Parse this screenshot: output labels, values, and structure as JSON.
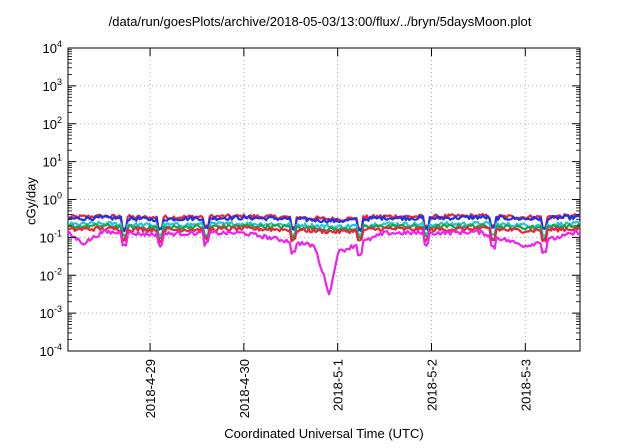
{
  "chart_data": {
    "type": "line",
    "title": "/data/run/goesPlots/archive/2018-05-03/13:00/flux/../bryn/5daysMoon.plot",
    "xlabel": "Coordinated Universal Time (UTC)",
    "ylabel": "cGy/day",
    "y_scale": "log",
    "ylim": [
      0.0001,
      10000
    ],
    "y_ticks": [
      {
        "value": 0.0001,
        "base": "10",
        "exp": "-4"
      },
      {
        "value": 0.001,
        "base": "10",
        "exp": "-3"
      },
      {
        "value": 0.01,
        "base": "10",
        "exp": "-2"
      },
      {
        "value": 0.1,
        "base": "10",
        "exp": "-1"
      },
      {
        "value": 1,
        "base": "10",
        "exp": "0"
      },
      {
        "value": 10,
        "base": "10",
        "exp": "1"
      },
      {
        "value": 100,
        "base": "10",
        "exp": "2"
      },
      {
        "value": 1000,
        "base": "10",
        "exp": "3"
      },
      {
        "value": 10000,
        "base": "10",
        "exp": "4"
      }
    ],
    "x_range": [
      "2018-04-28 03:00",
      "2018-05-03 14:00"
    ],
    "x_ticks": [
      "2018-4-29",
      "2018-4-30",
      "2018-5-1",
      "2018-5-2",
      "2018-5-3"
    ],
    "x_tick_dates": [
      "2018-04-29 00:00",
      "2018-04-30 00:00",
      "2018-05-01 00:00",
      "2018-05-02 00:00",
      "2018-05-03 00:00"
    ],
    "grid": true,
    "legend": "none",
    "series": [
      {
        "color": "#e8253a",
        "base": 0.34,
        "points": [
          {
            "x": "2018-04-28 03:00",
            "y": 0.34
          },
          {
            "x": "2018-04-28 12:00",
            "y": 0.36
          },
          {
            "x": "2018-04-29 00:00",
            "y": 0.33
          },
          {
            "x": "2018-04-29 12:00",
            "y": 0.35
          },
          {
            "x": "2018-04-30 00:00",
            "y": 0.36
          },
          {
            "x": "2018-04-30 12:00",
            "y": 0.34
          },
          {
            "x": "2018-05-01 00:00",
            "y": 0.3
          },
          {
            "x": "2018-05-01 12:00",
            "y": 0.36
          },
          {
            "x": "2018-05-02 00:00",
            "y": 0.35
          },
          {
            "x": "2018-05-02 12:00",
            "y": 0.37
          },
          {
            "x": "2018-05-03 00:00",
            "y": 0.34
          },
          {
            "x": "2018-05-03 14:00",
            "y": 0.37
          }
        ]
      },
      {
        "color": "#2233dd",
        "base": 0.31,
        "points": [
          {
            "x": "2018-04-28 03:00",
            "y": 0.31
          },
          {
            "x": "2018-04-28 12:00",
            "y": 0.33
          },
          {
            "x": "2018-04-29 00:00",
            "y": 0.3
          },
          {
            "x": "2018-04-29 12:00",
            "y": 0.32
          },
          {
            "x": "2018-04-30 00:00",
            "y": 0.33
          },
          {
            "x": "2018-04-30 12:00",
            "y": 0.31
          },
          {
            "x": "2018-05-01 00:00",
            "y": 0.27
          },
          {
            "x": "2018-05-01 12:00",
            "y": 0.33
          },
          {
            "x": "2018-05-02 00:00",
            "y": 0.32
          },
          {
            "x": "2018-05-02 12:00",
            "y": 0.34
          },
          {
            "x": "2018-05-03 00:00",
            "y": 0.31
          },
          {
            "x": "2018-05-03 14:00",
            "y": 0.34
          }
        ]
      },
      {
        "color": "#22c7d6",
        "base": 0.22,
        "points": [
          {
            "x": "2018-04-28 03:00",
            "y": 0.22
          },
          {
            "x": "2018-04-28 12:00",
            "y": 0.23
          },
          {
            "x": "2018-04-29 00:00",
            "y": 0.21
          },
          {
            "x": "2018-04-29 12:00",
            "y": 0.22
          },
          {
            "x": "2018-04-30 00:00",
            "y": 0.23
          },
          {
            "x": "2018-04-30 12:00",
            "y": 0.22
          },
          {
            "x": "2018-05-01 00:00",
            "y": 0.19
          },
          {
            "x": "2018-05-01 12:00",
            "y": 0.23
          },
          {
            "x": "2018-05-02 00:00",
            "y": 0.22
          },
          {
            "x": "2018-05-02 12:00",
            "y": 0.23
          },
          {
            "x": "2018-05-03 00:00",
            "y": 0.21
          },
          {
            "x": "2018-05-03 14:00",
            "y": 0.23
          }
        ]
      },
      {
        "color": "#1fa34a",
        "base": 0.19,
        "points": [
          {
            "x": "2018-04-28 03:00",
            "y": 0.19
          },
          {
            "x": "2018-04-28 12:00",
            "y": 0.2
          },
          {
            "x": "2018-04-29 00:00",
            "y": 0.18
          },
          {
            "x": "2018-04-29 12:00",
            "y": 0.19
          },
          {
            "x": "2018-04-30 00:00",
            "y": 0.2
          },
          {
            "x": "2018-04-30 12:00",
            "y": 0.19
          },
          {
            "x": "2018-05-01 00:00",
            "y": 0.16
          },
          {
            "x": "2018-05-01 12:00",
            "y": 0.2
          },
          {
            "x": "2018-05-02 00:00",
            "y": 0.19
          },
          {
            "x": "2018-05-02 12:00",
            "y": 0.2
          },
          {
            "x": "2018-05-03 00:00",
            "y": 0.18
          },
          {
            "x": "2018-05-03 14:00",
            "y": 0.2
          }
        ]
      },
      {
        "color": "#e8253a",
        "base": 0.16,
        "points": [
          {
            "x": "2018-04-28 03:00",
            "y": 0.16
          },
          {
            "x": "2018-04-28 12:00",
            "y": 0.17
          },
          {
            "x": "2018-04-29 00:00",
            "y": 0.16
          },
          {
            "x": "2018-04-29 12:00",
            "y": 0.16
          },
          {
            "x": "2018-04-30 00:00",
            "y": 0.17
          },
          {
            "x": "2018-04-30 12:00",
            "y": 0.16
          },
          {
            "x": "2018-05-01 00:00",
            "y": 0.14
          },
          {
            "x": "2018-05-01 12:00",
            "y": 0.17
          },
          {
            "x": "2018-05-02 00:00",
            "y": 0.16
          },
          {
            "x": "2018-05-02 12:00",
            "y": 0.17
          },
          {
            "x": "2018-05-03 00:00",
            "y": 0.15
          },
          {
            "x": "2018-05-03 14:00",
            "y": 0.17
          }
        ]
      },
      {
        "color": "#ee22ee",
        "base": 0.13,
        "points": [
          {
            "x": "2018-04-28 03:00",
            "y": 0.13
          },
          {
            "x": "2018-04-28 07:00",
            "y": 0.07
          },
          {
            "x": "2018-04-28 12:00",
            "y": 0.14
          },
          {
            "x": "2018-04-29 00:00",
            "y": 0.12
          },
          {
            "x": "2018-04-29 12:00",
            "y": 0.13
          },
          {
            "x": "2018-04-30 00:00",
            "y": 0.13
          },
          {
            "x": "2018-04-30 18:00",
            "y": 0.06
          },
          {
            "x": "2018-04-30 22:00",
            "y": 0.003
          },
          {
            "x": "2018-05-01 00:00",
            "y": 0.04
          },
          {
            "x": "2018-05-01 12:00",
            "y": 0.13
          },
          {
            "x": "2018-05-02 00:00",
            "y": 0.13
          },
          {
            "x": "2018-05-02 12:00",
            "y": 0.14
          },
          {
            "x": "2018-05-03 00:00",
            "y": 0.06
          },
          {
            "x": "2018-05-03 14:00",
            "y": 0.14
          }
        ]
      }
    ]
  }
}
